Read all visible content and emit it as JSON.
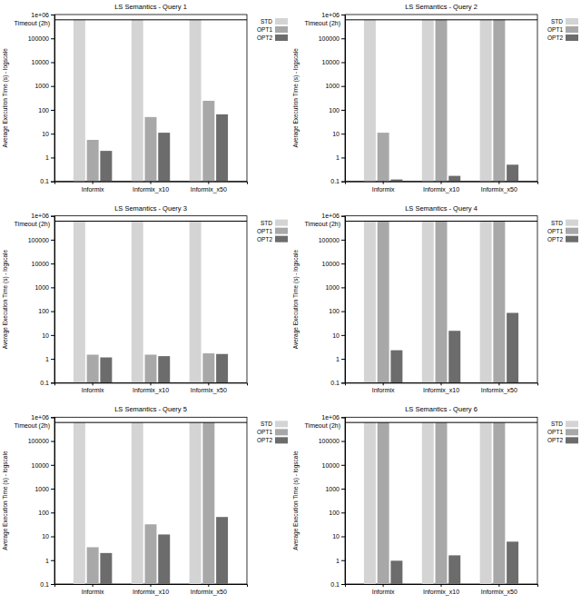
{
  "chart_data": [
    {
      "type": "bar",
      "title": "LS Semantics - Query 1",
      "y_label": "Average Execution Time (s) - logscale",
      "categories": [
        "Informix",
        "Informix_x10",
        "Informix_x50"
      ],
      "series": [
        {
          "name": "STD",
          "color": "#d4d4d4",
          "values": [
            600000,
            600000,
            600000
          ]
        },
        {
          "name": "OPT1",
          "color": "#a8a8a8",
          "values": [
            5.5,
            50,
            240
          ]
        },
        {
          "name": "OPT2",
          "color": "#6c6c6c",
          "values": [
            1.9,
            11,
            65
          ]
        }
      ],
      "ylim": [
        0.1,
        1000000
      ],
      "yticks": [
        0.1,
        1,
        10,
        100,
        1000,
        10000,
        100000,
        {
          "value": 1000000,
          "label": "1e+06"
        }
      ],
      "log": "y",
      "grid": false,
      "legend": "right",
      "annotations": [
        {
          "label": "Timeout (2h)",
          "value": 600000
        }
      ]
    },
    {
      "type": "bar",
      "title": "LS Semantics - Query 2",
      "y_label": "Average Execution Time (s) - logscale",
      "categories": [
        "Informix",
        "Informix_x10",
        "Informix_x50"
      ],
      "series": [
        {
          "name": "STD",
          "color": "#d4d4d4",
          "values": [
            600000,
            600000,
            600000
          ]
        },
        {
          "name": "OPT1",
          "color": "#a8a8a8",
          "values": [
            11,
            600000,
            600000
          ]
        },
        {
          "name": "OPT2",
          "color": "#6c6c6c",
          "values": [
            0.12,
            0.17,
            0.5
          ]
        }
      ],
      "ylim": [
        0.1,
        1000000
      ],
      "yticks": [
        0.1,
        1,
        10,
        100,
        1000,
        10000,
        100000,
        {
          "value": 1000000,
          "label": "1e+06"
        }
      ],
      "log": "y",
      "grid": false,
      "legend": "right",
      "annotations": [
        {
          "label": "Timeout (2h)",
          "value": 600000
        }
      ]
    },
    {
      "type": "bar",
      "title": "LS Semantics - Query 3",
      "y_label": "Average Execution Time (s) - logscale",
      "categories": [
        "Informix",
        "Informix_x10",
        "Informix_x50"
      ],
      "series": [
        {
          "name": "STD",
          "color": "#d4d4d4",
          "values": [
            600000,
            600000,
            600000
          ]
        },
        {
          "name": "OPT1",
          "color": "#a8a8a8",
          "values": [
            1.5,
            1.5,
            1.7
          ]
        },
        {
          "name": "OPT2",
          "color": "#6c6c6c",
          "values": [
            1.15,
            1.3,
            1.6
          ]
        }
      ],
      "ylim": [
        0.1,
        1000000
      ],
      "yticks": [
        0.1,
        1,
        10,
        100,
        1000,
        10000,
        100000,
        {
          "value": 1000000,
          "label": "1e+06"
        }
      ],
      "log": "y",
      "grid": false,
      "legend": "right",
      "annotations": [
        {
          "label": "Timeout (2h)",
          "value": 600000
        }
      ]
    },
    {
      "type": "bar",
      "title": "LS Semantics - Query 4",
      "y_label": "Average Execution Time (s) - logscale",
      "categories": [
        "Informix",
        "Informix_x10",
        "Informix_x50"
      ],
      "series": [
        {
          "name": "STD",
          "color": "#d4d4d4",
          "values": [
            600000,
            600000,
            600000
          ]
        },
        {
          "name": "OPT1",
          "color": "#a8a8a8",
          "values": [
            600000,
            600000,
            600000
          ]
        },
        {
          "name": "OPT2",
          "color": "#6c6c6c",
          "values": [
            2.3,
            15,
            85
          ]
        }
      ],
      "ylim": [
        0.1,
        1000000
      ],
      "yticks": [
        0.1,
        1,
        10,
        100,
        1000,
        10000,
        100000,
        {
          "value": 1000000,
          "label": "1e+06"
        }
      ],
      "log": "y",
      "grid": false,
      "legend": "right",
      "annotations": [
        {
          "label": "Timeout (2h)",
          "value": 600000
        }
      ]
    },
    {
      "type": "bar",
      "title": "LS Semantics - Query 5",
      "y_label": "Average Execution Time (s) - logscale",
      "categories": [
        "Informix",
        "Informix_x10",
        "Informix_x50"
      ],
      "series": [
        {
          "name": "STD",
          "color": "#d4d4d4",
          "values": [
            600000,
            600000,
            600000
          ]
        },
        {
          "name": "OPT1",
          "color": "#a8a8a8",
          "values": [
            3.5,
            32,
            600000
          ]
        },
        {
          "name": "OPT2",
          "color": "#6c6c6c",
          "values": [
            2.0,
            12,
            65
          ]
        }
      ],
      "ylim": [
        0.1,
        1000000
      ],
      "yticks": [
        0.1,
        1,
        10,
        100,
        1000,
        10000,
        100000,
        {
          "value": 1000000,
          "label": "1e+06"
        }
      ],
      "log": "y",
      "grid": false,
      "legend": "right",
      "annotations": [
        {
          "label": "Timeout (2h)",
          "value": 600000
        }
      ]
    },
    {
      "type": "bar",
      "title": "LS Semantics - Query 6",
      "y_label": "Average Execution Time (s) - logscale",
      "categories": [
        "Informix",
        "Informix_x10",
        "Informix_x50"
      ],
      "series": [
        {
          "name": "STD",
          "color": "#d4d4d4",
          "values": [
            600000,
            600000,
            600000
          ]
        },
        {
          "name": "OPT1",
          "color": "#a8a8a8",
          "values": [
            600000,
            600000,
            600000
          ]
        },
        {
          "name": "OPT2",
          "color": "#6c6c6c",
          "values": [
            0.95,
            1.6,
            6
          ]
        }
      ],
      "ylim": [
        0.1,
        1000000
      ],
      "yticks": [
        0.1,
        1,
        10,
        100,
        1000,
        10000,
        100000,
        {
          "value": 1000000,
          "label": "1e+06"
        }
      ],
      "log": "y",
      "grid": false,
      "legend": "right",
      "annotations": [
        {
          "label": "Timeout (2h)",
          "value": 600000
        }
      ]
    }
  ]
}
